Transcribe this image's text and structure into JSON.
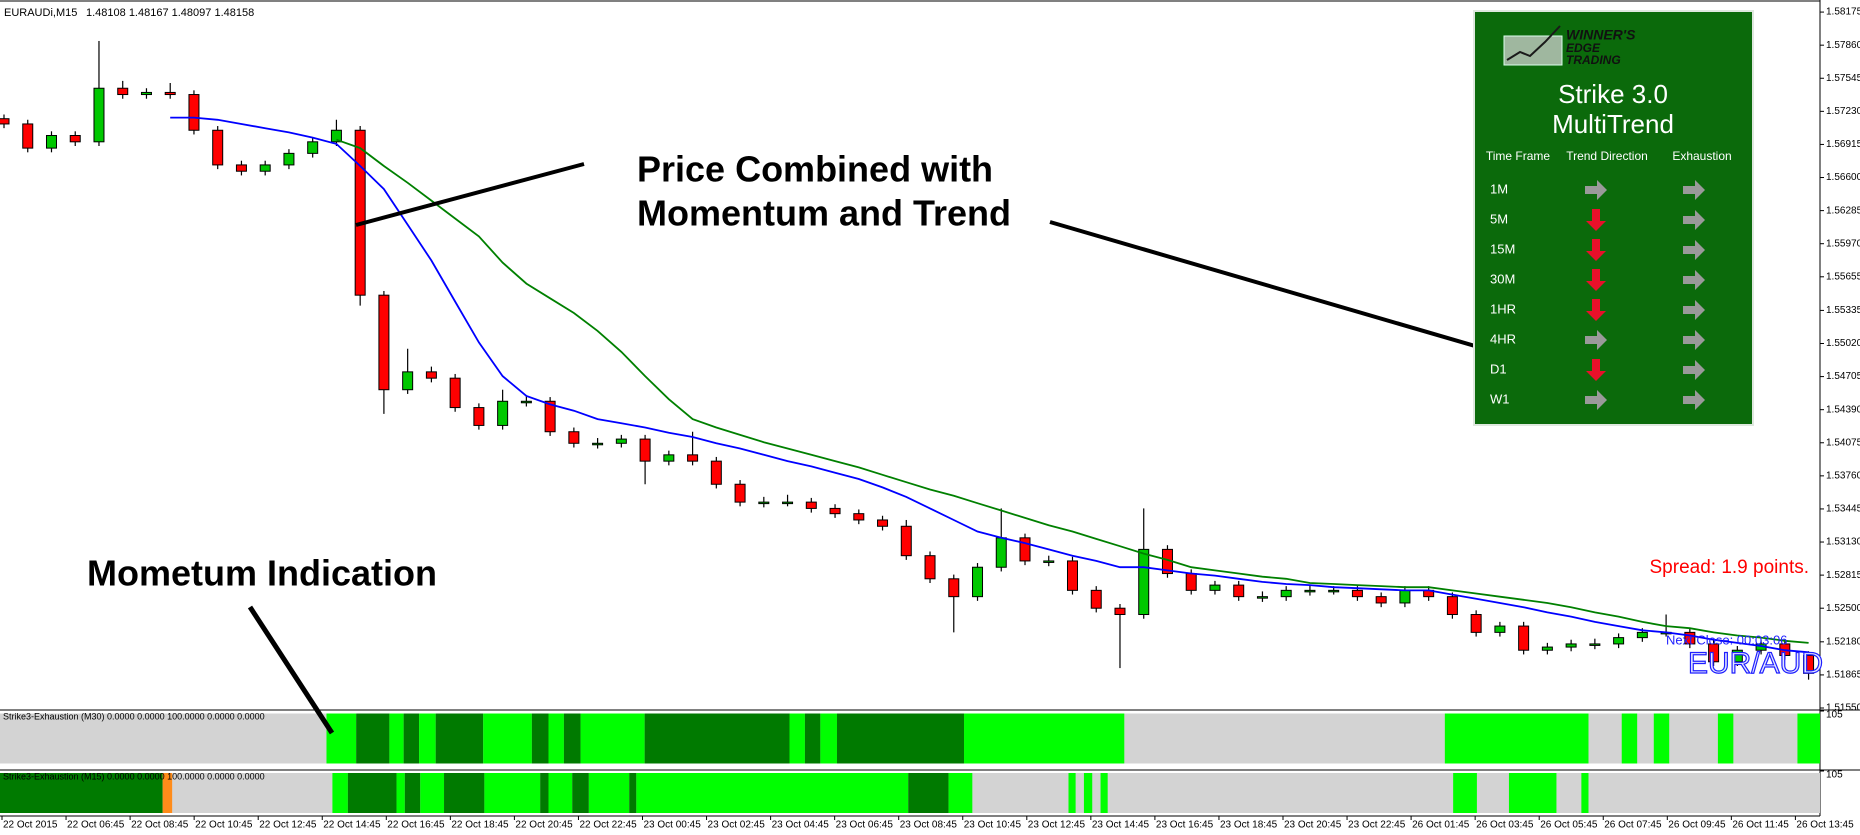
{
  "header": {
    "symbol": "EURAUDi,M15",
    "quote": "1.48108 1.48167 1.48097 1.48158"
  },
  "chart_data": {
    "type": "candlestick",
    "open": [
      1.5716,
      1.5711,
      1.5688,
      1.57,
      1.5694,
      1.5745,
      1.5739,
      1.5741,
      1.5739,
      1.5705,
      1.5672,
      1.5666,
      1.5672,
      1.5683,
      1.5694,
      1.5705,
      1.5548,
      1.5458,
      1.5475,
      1.5469,
      1.5441,
      1.5424,
      1.5447,
      1.5447,
      1.5418,
      1.5407,
      1.5407,
      1.5411,
      1.539,
      1.5396,
      1.539,
      1.5368,
      1.5351,
      1.5351,
      1.5351,
      1.5345,
      1.534,
      1.5334,
      1.5328,
      1.53,
      1.5278,
      1.5261,
      1.5289,
      1.5317,
      1.5295,
      1.5295,
      1.5267,
      1.525,
      1.5244,
      1.5306,
      1.5283,
      1.5267,
      1.5272,
      1.5261,
      1.5261,
      1.5267,
      1.5267,
      1.5267,
      1.5261,
      1.5255,
      1.5267,
      1.5261,
      1.5244,
      1.5227,
      1.5233,
      1.521,
      1.5213,
      1.5216,
      1.5216,
      1.5222,
      1.5227,
      1.5227,
      1.5216,
      1.5199,
      1.521,
      1.5216,
      1.5205
    ],
    "high": [
      1.572,
      1.5715,
      1.5704,
      1.5704,
      1.579,
      1.5752,
      1.5745,
      1.575,
      1.5743,
      1.5709,
      1.5676,
      1.5676,
      1.5687,
      1.5698,
      1.5715,
      1.5709,
      1.5552,
      1.5497,
      1.548,
      1.5473,
      1.5445,
      1.5458,
      1.5452,
      1.5451,
      1.5422,
      1.5412,
      1.5415,
      1.5415,
      1.54,
      1.5418,
      1.5394,
      1.5372,
      1.5356,
      1.5358,
      1.5355,
      1.5349,
      1.5344,
      1.5338,
      1.5334,
      1.5304,
      1.5282,
      1.5293,
      1.5345,
      1.5321,
      1.53,
      1.5299,
      1.5271,
      1.5254,
      1.5345,
      1.531,
      1.5287,
      1.5276,
      1.5276,
      1.5266,
      1.5271,
      1.5272,
      1.5271,
      1.5271,
      1.5265,
      1.5271,
      1.5271,
      1.5265,
      1.5248,
      1.5237,
      1.5237,
      1.5217,
      1.522,
      1.5221,
      1.5226,
      1.5231,
      1.5244,
      1.5231,
      1.522,
      1.5214,
      1.522,
      1.522,
      1.5209
    ],
    "low": [
      1.5707,
      1.5684,
      1.5684,
      1.569,
      1.569,
      1.5735,
      1.5735,
      1.5735,
      1.5701,
      1.5668,
      1.5662,
      1.5662,
      1.5668,
      1.5679,
      1.569,
      1.5538,
      1.5435,
      1.5454,
      1.5465,
      1.5437,
      1.542,
      1.542,
      1.5442,
      1.5414,
      1.5403,
      1.5402,
      1.5403,
      1.5368,
      1.5386,
      1.5386,
      1.5364,
      1.5347,
      1.5346,
      1.5347,
      1.5341,
      1.5336,
      1.533,
      1.5324,
      1.5296,
      1.5274,
      1.5227,
      1.5257,
      1.5285,
      1.5291,
      1.529,
      1.5263,
      1.5246,
      1.5193,
      1.524,
      1.5279,
      1.5263,
      1.5263,
      1.5257,
      1.5256,
      1.5257,
      1.5262,
      1.5263,
      1.5257,
      1.5251,
      1.5251,
      1.5257,
      1.524,
      1.5223,
      1.5223,
      1.5206,
      1.5206,
      1.5209,
      1.5211,
      1.5212,
      1.5218,
      1.5223,
      1.5212,
      1.5195,
      1.5195,
      1.5206,
      1.5201,
      1.5182
    ],
    "close": [
      1.5711,
      1.5688,
      1.57,
      1.5694,
      1.5745,
      1.5739,
      1.5741,
      1.5739,
      1.5705,
      1.5672,
      1.5666,
      1.5672,
      1.5683,
      1.5694,
      1.5705,
      1.5548,
      1.5458,
      1.5475,
      1.5469,
      1.5441,
      1.5424,
      1.5447,
      1.5447,
      1.5418,
      1.5407,
      1.5407,
      1.5411,
      1.539,
      1.5396,
      1.539,
      1.5368,
      1.5351,
      1.5351,
      1.5351,
      1.5345,
      1.534,
      1.5334,
      1.5328,
      1.53,
      1.5278,
      1.5261,
      1.5289,
      1.5317,
      1.5295,
      1.5295,
      1.5267,
      1.525,
      1.5244,
      1.5306,
      1.5283,
      1.5267,
      1.5272,
      1.5261,
      1.5261,
      1.5267,
      1.5267,
      1.5267,
      1.5261,
      1.5255,
      1.5267,
      1.5261,
      1.5244,
      1.5227,
      1.5233,
      1.521,
      1.5213,
      1.5216,
      1.5216,
      1.5222,
      1.5227,
      1.5227,
      1.5216,
      1.5199,
      1.521,
      1.5216,
      1.5205,
      1.5188
    ],
    "up_color": "#00c800",
    "down_color": "#ff0000",
    "moving_averages": [
      {
        "color": "#0000ff",
        "values": [
          null,
          null,
          null,
          null,
          null,
          null,
          null,
          1.5717,
          1.5717,
          1.5715,
          1.5711,
          1.5707,
          1.5703,
          1.5698,
          1.5692,
          1.5671,
          1.5649,
          1.5615,
          1.5581,
          1.5542,
          1.5503,
          1.5471,
          1.5452,
          1.5444,
          1.5438,
          1.543,
          1.5426,
          1.5422,
          1.5417,
          1.5413,
          1.5407,
          1.5402,
          1.5396,
          1.539,
          1.5385,
          1.5379,
          1.5373,
          1.5365,
          1.5356,
          1.5345,
          1.5334,
          1.5323,
          1.5317,
          1.5312,
          1.5306,
          1.53,
          1.5295,
          1.5289,
          1.5289,
          1.5286,
          1.5283,
          1.5281,
          1.5278,
          1.5275,
          1.5273,
          1.5272,
          1.527,
          1.5269,
          1.5268,
          1.5267,
          1.5267,
          1.5263,
          1.5259,
          1.5255,
          1.5251,
          1.5246,
          1.5242,
          1.5237,
          1.5233,
          1.5229,
          1.5227,
          1.5224,
          1.522,
          1.5217,
          1.5214,
          1.521,
          1.5208
        ]
      },
      {
        "color": "#008000",
        "values": [
          null,
          null,
          null,
          null,
          null,
          null,
          null,
          null,
          null,
          null,
          null,
          null,
          null,
          null,
          1.5696,
          1.5688,
          1.5671,
          1.5655,
          1.5638,
          1.5621,
          1.5604,
          1.5579,
          1.5559,
          1.5545,
          1.5531,
          1.5514,
          1.5494,
          1.5471,
          1.5449,
          1.543,
          1.5422,
          1.5415,
          1.5408,
          1.5402,
          1.5396,
          1.539,
          1.5384,
          1.5377,
          1.537,
          1.5363,
          1.5357,
          1.535,
          1.5343,
          1.5336,
          1.5329,
          1.5323,
          1.5316,
          1.5309,
          1.5302,
          1.5296,
          1.5289,
          1.5286,
          1.5283,
          1.528,
          1.5278,
          1.5274,
          1.5273,
          1.5272,
          1.5271,
          1.527,
          1.527,
          1.5267,
          1.5264,
          1.5261,
          1.5258,
          1.5255,
          1.5251,
          1.5246,
          1.5242,
          1.5237,
          1.5233,
          1.5231,
          1.5227,
          1.5224,
          1.5222,
          1.5219,
          1.5217
        ]
      }
    ],
    "ylim": [
      1.5155,
      1.5829
    ],
    "yticks": [
      1.58175,
      {
        "value": 1.5786,
        "label": "1.57860"
      },
      1.57545,
      {
        "value": 1.5723,
        "label": "1.57230"
      },
      1.56915,
      {
        "value": 1.566,
        "label": "1.56600"
      },
      1.56285,
      {
        "value": 1.5597,
        "label": "1.55970"
      },
      1.55655,
      1.55335,
      {
        "value": 1.5502,
        "label": "1.55020"
      },
      1.54705,
      {
        "value": 1.5439,
        "label": "1.54390"
      },
      1.54075,
      {
        "value": 1.5376,
        "label": "1.53760"
      },
      1.53445,
      {
        "value": 1.5313,
        "label": "1.53130"
      },
      1.52815,
      {
        "value": 1.525,
        "label": "1.52500"
      },
      {
        "value": 1.5218,
        "label": "1.52180"
      },
      1.51865,
      {
        "value": 1.5155,
        "label": "1.51550"
      }
    ],
    "x_labels": [
      "22 Oct 2015",
      "22 Oct 06:45",
      "22 Oct 08:45",
      "22 Oct 10:45",
      "22 Oct 12:45",
      "22 Oct 14:45",
      "22 Oct 16:45",
      "22 Oct 18:45",
      "22 Oct 20:45",
      "22 Oct 22:45",
      "23 Oct 00:45",
      "23 Oct 02:45",
      "23 Oct 04:45",
      "23 Oct 06:45",
      "23 Oct 08:45",
      "23 Oct 10:45",
      "23 Oct 12:45",
      "23 Oct 14:45",
      "23 Oct 16:45",
      "23 Oct 18:45",
      "23 Oct 20:45",
      "23 Oct 22:45",
      "26 Oct 01:45",
      "26 Oct 03:45",
      "26 Oct 05:45",
      "26 Oct 07:45",
      "26 Oct 09:45",
      "26 Oct 11:45",
      "26 Oct 13:45"
    ]
  },
  "indicator_panes": [
    {
      "label": "Strike3-Exhaustion (M30) 0.0000 0.0000 100.0000 0.0000 0.0000",
      "ylim": [
        -5,
        105
      ],
      "yticks": [
        105
      ],
      "background": "#d3d3d3",
      "bands": [
        {
          "from": 13.75,
          "to": 15,
          "color": "#00ff00"
        },
        {
          "from": 15,
          "to": 16.4,
          "color": "#007a00"
        },
        {
          "from": 16.4,
          "to": 17,
          "color": "#00ff00"
        },
        {
          "from": 17,
          "to": 17.65,
          "color": "#007a00"
        },
        {
          "from": 17.65,
          "to": 18.35,
          "color": "#00ff00"
        },
        {
          "from": 18.35,
          "to": 20.35,
          "color": "#007a00"
        },
        {
          "from": 20.35,
          "to": 22.4,
          "color": "#00ff00"
        },
        {
          "from": 22.4,
          "to": 23.1,
          "color": "#007a00"
        },
        {
          "from": 23.1,
          "to": 23.75,
          "color": "#00ff00"
        },
        {
          "from": 23.75,
          "to": 24.45,
          "color": "#007a00"
        },
        {
          "from": 24.45,
          "to": 27.15,
          "color": "#00ff00"
        },
        {
          "from": 27.15,
          "to": 33.25,
          "color": "#007a00"
        },
        {
          "from": 33.25,
          "to": 33.9,
          "color": "#00ff00"
        },
        {
          "from": 33.9,
          "to": 34.55,
          "color": "#007a00"
        },
        {
          "from": 34.55,
          "to": 35.25,
          "color": "#00ff00"
        },
        {
          "from": 35.25,
          "to": 40.6,
          "color": "#007a00"
        },
        {
          "from": 40.6,
          "to": 47.35,
          "color": "#00ff00"
        },
        {
          "from": 60.85,
          "to": 66.9,
          "color": "#00ff00"
        },
        {
          "from": 68.3,
          "to": 68.95,
          "color": "#00ff00"
        },
        {
          "from": 69.65,
          "to": 70.3,
          "color": "#00ff00"
        },
        {
          "from": 72.35,
          "to": 73,
          "color": "#00ff00"
        },
        {
          "from": 75.7,
          "to": 76.65,
          "color": "#00ff00"
        }
      ]
    },
    {
      "label": "Strike3-Exhaustion (M15) 0.0000 0.0000 100.0000 0.0000 0.0000",
      "ylim": [
        -5,
        105
      ],
      "yticks": [
        105
      ],
      "background": "#d3d3d3",
      "bands": [
        {
          "from": 0,
          "to": 6.85,
          "color": "#007a00"
        },
        {
          "from": 6.85,
          "to": 7.25,
          "color": "#ff8c1a"
        },
        {
          "from": 14,
          "to": 14.65,
          "color": "#00ff00"
        },
        {
          "from": 14.65,
          "to": 16.7,
          "color": "#007a00"
        },
        {
          "from": 16.7,
          "to": 17.05,
          "color": "#00ff00"
        },
        {
          "from": 17.05,
          "to": 17.7,
          "color": "#007a00"
        },
        {
          "from": 17.7,
          "to": 18.7,
          "color": "#00ff00"
        },
        {
          "from": 18.7,
          "to": 20.4,
          "color": "#007a00"
        },
        {
          "from": 20.4,
          "to": 22.75,
          "color": "#00ff00"
        },
        {
          "from": 22.75,
          "to": 23.1,
          "color": "#007a00"
        },
        {
          "from": 23.1,
          "to": 24.1,
          "color": "#00ff00"
        },
        {
          "from": 24.1,
          "to": 24.8,
          "color": "#007a00"
        },
        {
          "from": 24.8,
          "to": 26.5,
          "color": "#00ff00"
        },
        {
          "from": 26.5,
          "to": 26.8,
          "color": "#007a00"
        },
        {
          "from": 26.8,
          "to": 38.25,
          "color": "#00ff00"
        },
        {
          "from": 38.25,
          "to": 39.95,
          "color": "#007a00"
        },
        {
          "from": 39.95,
          "to": 40.95,
          "color": "#00ff00"
        },
        {
          "from": 45,
          "to": 45.3,
          "color": "#00ff00"
        },
        {
          "from": 45.65,
          "to": 46,
          "color": "#00ff00"
        },
        {
          "from": 46.35,
          "to": 46.65,
          "color": "#00ff00"
        },
        {
          "from": 61.2,
          "to": 62.2,
          "color": "#00ff00"
        },
        {
          "from": 63.55,
          "to": 65.55,
          "color": "#00ff00"
        },
        {
          "from": 66.6,
          "to": 66.9,
          "color": "#00ff00"
        }
      ]
    }
  ],
  "annotations": {
    "price_note": [
      "Price Combined with",
      "Momentum and Trend"
    ],
    "momentum_note": "Mometum Indication",
    "spread": "Spread: 1.9 points.",
    "next_close": "Next Close:  00:03:06",
    "pair": "EUR/AUD"
  },
  "panel": {
    "logo": [
      "WINNER'S",
      "EDGE",
      "TRADING"
    ],
    "title": [
      "Strike 3.0",
      "MultiTrend"
    ],
    "headers": [
      "Time Frame",
      "Trend Direction",
      "Exhaustion"
    ],
    "rows": [
      {
        "timeframe": "1M",
        "trend": "right",
        "exhaustion": "right"
      },
      {
        "timeframe": "5M",
        "trend": "down",
        "exhaustion": "right"
      },
      {
        "timeframe": "15M",
        "trend": "down",
        "exhaustion": "right"
      },
      {
        "timeframe": "30M",
        "trend": "down",
        "exhaustion": "right"
      },
      {
        "timeframe": "1HR",
        "trend": "down",
        "exhaustion": "right"
      },
      {
        "timeframe": "4HR",
        "trend": "right",
        "exhaustion": "right"
      },
      {
        "timeframe": "D1",
        "trend": "down",
        "exhaustion": "right"
      },
      {
        "timeframe": "W1",
        "trend": "right",
        "exhaustion": "right"
      }
    ]
  }
}
